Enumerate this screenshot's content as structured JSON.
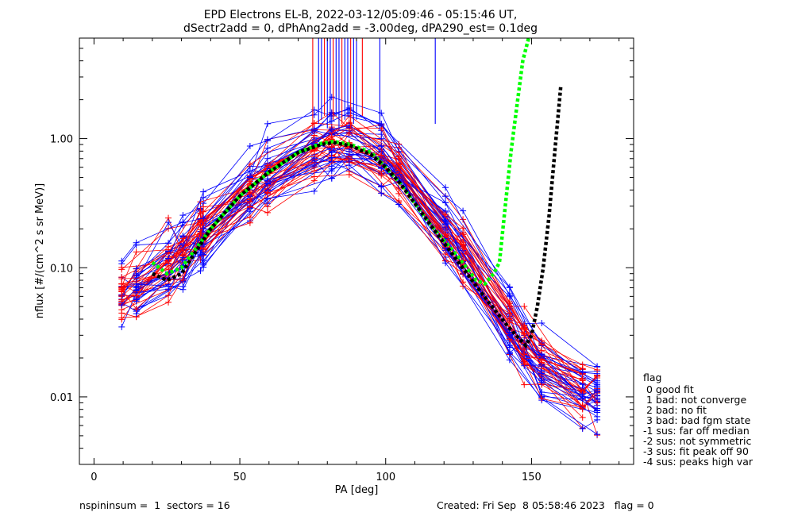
{
  "chart_data": {
    "type": "line",
    "title": "EPD Electrons EL-B, 2022-03-12/05:09:46 - 05:15:46 UT,",
    "subtitle": "dSectr2add = 0, dPhAng2add = -3.00deg, dPA290_est=   0.1deg",
    "xlabel": "PA [deg]",
    "ylabel": "nflux [#/(cm^2 s sr MeV)]",
    "xlim": [
      -5,
      185
    ],
    "ylim": [
      0.003,
      6.0
    ],
    "yscale": "log",
    "grid": false,
    "x_ticks": [
      0,
      50,
      100,
      150
    ],
    "x_tick_labels": [
      "0",
      "50",
      "100",
      "150"
    ],
    "y_ticks": [
      0.01,
      0.1,
      1.0
    ],
    "y_tick_labels": [
      "0.01",
      "0.10",
      "1.00"
    ],
    "sector_pa": [
      9.5,
      14.5,
      25.5,
      30.5,
      36.5,
      37.5,
      53.5,
      59.5,
      75.5,
      81.5,
      87.5,
      98.5,
      104.5,
      120.5,
      126.5,
      142.5,
      147.5,
      153.5,
      167.5,
      172.5
    ],
    "fits": [
      {
        "color": "#00ff00",
        "style": "dashed",
        "x": [
          20,
          25,
          30,
          40,
          50,
          60,
          70,
          78,
          82,
          88,
          95,
          100,
          105,
          115,
          125,
          131,
          134,
          137,
          139,
          141,
          143,
          145,
          147,
          149
        ],
        "y": [
          0.11,
          0.09,
          0.1,
          0.2,
          0.36,
          0.55,
          0.78,
          0.92,
          0.95,
          0.9,
          0.78,
          0.6,
          0.45,
          0.22,
          0.12,
          0.08,
          0.075,
          0.09,
          0.11,
          0.3,
          0.8,
          1.8,
          4.0,
          6.0
        ]
      },
      {
        "color": "#000000",
        "style": "dashed",
        "x": [
          20,
          25,
          30,
          40,
          50,
          60,
          70,
          78,
          82,
          88,
          95,
          100,
          105,
          115,
          125,
          135,
          142,
          148,
          150,
          152,
          154,
          156,
          158,
          160
        ],
        "y": [
          0.09,
          0.08,
          0.09,
          0.2,
          0.36,
          0.55,
          0.78,
          0.9,
          0.93,
          0.88,
          0.75,
          0.6,
          0.45,
          0.22,
          0.11,
          0.055,
          0.035,
          0.025,
          0.03,
          0.05,
          0.1,
          0.25,
          0.8,
          2.5
        ]
      }
    ],
    "legend": {
      "placement": "right",
      "title": "flag",
      "entries": [
        " 0 good fit",
        " 1 bad: not converge",
        " 2 bad: no fit",
        " 3 bad: bad fgm state",
        "-1 sus: far off median",
        "-2 sus: not symmetric",
        "-3 sus: fit peak off 90",
        "-4 sus: peaks high var"
      ]
    },
    "series_colors": {
      "red": "#ff0000",
      "blue": "#0000ff"
    },
    "footer_left": "nspininsum =  1  sectors = 16",
    "footer_right": "Created: Fri Sep  8 05:58:46 2023   flag = 0"
  }
}
